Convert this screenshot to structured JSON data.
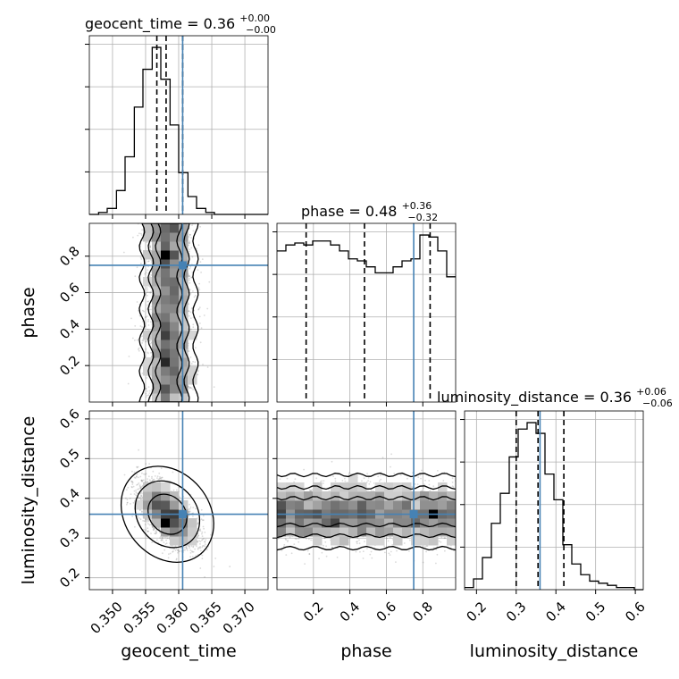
{
  "chart_data": {
    "type": "corner",
    "parameters": [
      "geocent_time",
      "phase",
      "luminosity_distance"
    ],
    "truth_color": "#4682b4",
    "axes": {
      "geocent_time": {
        "label": "geocent_time",
        "range": [
          0.3465,
          0.3735
        ],
        "ticks": [
          0.35,
          0.355,
          0.36,
          0.365,
          0.37
        ],
        "tick_labels": [
          "0.350",
          "0.355",
          "0.360",
          "0.365",
          "0.370"
        ]
      },
      "phase": {
        "label": "phase",
        "range": [
          0.0,
          0.98
        ],
        "ticks": [
          0.2,
          0.4,
          0.6,
          0.8
        ],
        "tick_labels": [
          "0.2",
          "0.4",
          "0.6",
          "0.8"
        ]
      },
      "luminosity_distance": {
        "label": "luminosity_distance",
        "range": [
          0.17,
          0.62
        ],
        "ticks": [
          0.2,
          0.3,
          0.4,
          0.5,
          0.6
        ],
        "tick_labels": [
          "0.2",
          "0.3",
          "0.4",
          "0.5",
          "0.6"
        ]
      }
    },
    "titles": {
      "geocent_time": {
        "prefix": "geocent_time = 0.36",
        "sup": "+0.00",
        "sub": "−0.00"
      },
      "phase": {
        "prefix": "phase = 0.48",
        "sup": "+0.36",
        "sub": "−0.32"
      },
      "luminosity_distance": {
        "prefix": "luminosity_distance = 0.36",
        "sup": "+0.06",
        "sub": "−0.06"
      }
    },
    "marginals": {
      "geocent_time": {
        "edges": [
          0.3465,
          0.3479,
          0.3492,
          0.3506,
          0.3519,
          0.3533,
          0.3546,
          0.356,
          0.3573,
          0.3587,
          0.36,
          0.3614,
          0.3627,
          0.3641,
          0.3654,
          0.3668,
          0.3681,
          0.3695,
          0.3708,
          0.3722,
          0.3735
        ],
        "counts": [
          0,
          1,
          3,
          12,
          29,
          54,
          73,
          84,
          68,
          45,
          21,
          9,
          3,
          1,
          0,
          0,
          0,
          0,
          0,
          0
        ],
        "quantiles": [
          0.3567,
          0.3581,
          0.3606
        ],
        "truth": 0.3606
      },
      "phase": {
        "edges": [
          0.0,
          0.049,
          0.098,
          0.147,
          0.196,
          0.245,
          0.294,
          0.343,
          0.392,
          0.441,
          0.49,
          0.539,
          0.588,
          0.637,
          0.686,
          0.735,
          0.784,
          0.833,
          0.882,
          0.931,
          0.98
        ],
        "counts": [
          76,
          79,
          80,
          79,
          81,
          81,
          79,
          76,
          72,
          71,
          68,
          65,
          65,
          68,
          71,
          72,
          84,
          83,
          76,
          63
        ],
        "quantiles": [
          0.16,
          0.48,
          0.84
        ],
        "truth": 0.75
      },
      "luminosity_distance": {
        "edges": [
          0.17,
          0.1925,
          0.215,
          0.2375,
          0.26,
          0.2825,
          0.305,
          0.3275,
          0.35,
          0.3725,
          0.395,
          0.4175,
          0.44,
          0.4625,
          0.485,
          0.5075,
          0.53,
          0.5525,
          0.575,
          0.5975,
          0.62
        ],
        "counts": [
          1,
          5,
          15,
          31,
          45,
          62,
          75,
          78,
          73,
          54,
          42,
          21,
          12,
          7,
          4,
          3,
          2,
          1,
          1,
          0
        ],
        "quantiles": [
          0.3,
          0.355,
          0.42
        ],
        "truth": 0.36
      }
    },
    "truths": {
      "geocent_time": 0.3606,
      "phase": 0.75,
      "luminosity_distance": 0.36
    },
    "scatter_2d": [
      {
        "x": "geocent_time",
        "y": "phase",
        "x_center": 0.3585,
        "x_spread": 0.0018,
        "y_range": [
          0.02,
          0.98
        ],
        "correlation": 0,
        "density_blobs": [
          [
            0.3578,
            0.83
          ],
          [
            0.3582,
            0.35
          ],
          [
            0.3584,
            0.2
          ]
        ]
      },
      {
        "x": "geocent_time",
        "y": "luminosity_distance",
        "x_center": 0.3583,
        "x_spread": 0.0022,
        "y_center": 0.36,
        "y_spread": 0.04,
        "correlation": -0.6,
        "density_blobs": [
          [
            0.3578,
            0.35
          ]
        ]
      },
      {
        "x": "phase",
        "y": "luminosity_distance",
        "x_range": [
          0.0,
          0.98
        ],
        "y_center": 0.36,
        "y_spread": 0.04,
        "correlation": 0,
        "density_blobs": [
          [
            0.18,
            0.36
          ],
          [
            0.33,
            0.35
          ],
          [
            0.85,
            0.36
          ]
        ]
      }
    ]
  }
}
